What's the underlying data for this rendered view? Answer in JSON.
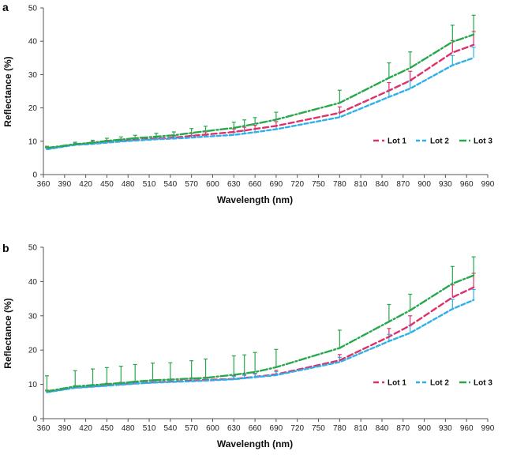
{
  "chart_data": [
    {
      "type": "line",
      "panel_label": "a",
      "xlabel": "Wavelength (nm)",
      "ylabel": "Reflectance (%)",
      "xlim": [
        360,
        990
      ],
      "ylim": [
        0,
        50
      ],
      "x_ticks": [
        360,
        390,
        420,
        450,
        480,
        510,
        540,
        570,
        600,
        630,
        660,
        690,
        720,
        750,
        780,
        810,
        840,
        870,
        900,
        930,
        960,
        990
      ],
      "y_ticks": [
        0,
        10,
        20,
        30,
        40,
        50
      ],
      "grid": false,
      "legend_position": "center-right",
      "x": [
        365,
        405,
        430,
        450,
        470,
        490,
        520,
        545,
        570,
        590,
        630,
        645,
        660,
        690,
        780,
        850,
        880,
        940,
        970
      ],
      "series": [
        {
          "name": "Lot 1",
          "color": "#e0306a",
          "dash": "7,4",
          "values": [
            7.8,
            9.0,
            9.4,
            9.8,
            10.1,
            10.4,
            10.8,
            11.1,
            11.6,
            12.0,
            12.8,
            13.2,
            13.7,
            14.6,
            18.5,
            25.2,
            28.2,
            36.6,
            38.9
          ],
          "err": [
            0.4,
            0.4,
            0.5,
            0.5,
            0.5,
            0.5,
            0.6,
            0.6,
            0.7,
            0.8,
            0.9,
            1.0,
            1.1,
            1.3,
            1.8,
            2.4,
            2.8,
            3.6,
            4.0
          ]
        },
        {
          "name": "Lot 2",
          "color": "#30b0e8",
          "dash": "5,3",
          "values": [
            7.6,
            8.9,
            9.2,
            9.6,
            9.9,
            10.2,
            10.6,
            10.8,
            11.1,
            11.4,
            11.9,
            12.3,
            12.7,
            13.6,
            17.2,
            23.3,
            25.8,
            32.8,
            35.0
          ],
          "err": [
            0.4,
            0.4,
            0.4,
            0.5,
            0.5,
            0.5,
            0.5,
            0.6,
            0.6,
            0.7,
            0.8,
            0.8,
            0.9,
            1.0,
            1.5,
            2.0,
            2.3,
            2.9,
            3.2
          ]
        },
        {
          "name": "Lot 3",
          "color": "#28a84c",
          "dash": "9,3,2,3",
          "values": [
            8.0,
            9.1,
            9.6,
            10.1,
            10.5,
            10.9,
            11.4,
            11.8,
            12.5,
            13.0,
            14.0,
            14.6,
            15.2,
            16.5,
            21.5,
            29.0,
            32.0,
            39.8,
            42.0
          ],
          "err": [
            0.5,
            0.6,
            0.7,
            0.8,
            0.8,
            0.9,
            1.0,
            1.0,
            1.3,
            1.5,
            1.7,
            1.8,
            1.9,
            2.2,
            3.8,
            4.5,
            4.8,
            5.0,
            5.8
          ]
        }
      ]
    },
    {
      "type": "line",
      "panel_label": "b",
      "xlabel": "Wavelength (nm)",
      "ylabel": "Reflectance (%)",
      "xlim": [
        360,
        990
      ],
      "ylim": [
        0,
        50
      ],
      "x_ticks": [
        360,
        390,
        420,
        450,
        480,
        510,
        540,
        570,
        600,
        630,
        660,
        690,
        720,
        750,
        780,
        810,
        840,
        870,
        900,
        930,
        960,
        990
      ],
      "y_ticks": [
        0,
        10,
        20,
        30,
        40,
        50
      ],
      "grid": false,
      "legend_position": "center-right",
      "x": [
        365,
        405,
        430,
        450,
        470,
        490,
        515,
        540,
        570,
        590,
        630,
        645,
        660,
        690,
        780,
        850,
        880,
        940,
        970
      ],
      "series": [
        {
          "name": "Lot 1",
          "color": "#e0306a",
          "dash": "7,4",
          "values": [
            7.8,
            9.1,
            9.4,
            9.7,
            10.0,
            10.3,
            10.6,
            10.8,
            11.1,
            11.3,
            11.6,
            11.9,
            12.2,
            12.9,
            17.0,
            23.9,
            27.2,
            35.4,
            38.3
          ],
          "err": [
            0.5,
            0.5,
            0.5,
            0.6,
            0.6,
            0.6,
            0.7,
            0.7,
            0.8,
            0.8,
            0.9,
            1.0,
            1.0,
            1.2,
            1.7,
            2.4,
            2.8,
            3.6,
            4.1
          ]
        },
        {
          "name": "Lot 2",
          "color": "#30b0e8",
          "dash": "5,3",
          "values": [
            7.7,
            9.0,
            9.3,
            9.6,
            9.9,
            10.2,
            10.5,
            10.7,
            10.9,
            11.1,
            11.5,
            11.8,
            12.1,
            12.7,
            16.5,
            22.6,
            25.0,
            32.0,
            34.6
          ],
          "err": [
            0.4,
            0.4,
            0.5,
            0.5,
            0.5,
            0.5,
            0.6,
            0.6,
            0.6,
            0.7,
            0.8,
            0.8,
            0.9,
            1.0,
            1.4,
            2.0,
            2.2,
            2.8,
            3.1
          ]
        },
        {
          "name": "Lot 3",
          "color": "#28a84c",
          "dash": "9,3,2,3",
          "values": [
            8.0,
            9.4,
            9.8,
            10.1,
            10.4,
            10.8,
            11.2,
            11.4,
            11.7,
            11.9,
            12.8,
            13.2,
            13.6,
            15.0,
            20.6,
            28.3,
            31.6,
            39.4,
            41.8
          ],
          "err": [
            4.5,
            4.6,
            4.7,
            4.8,
            4.9,
            5.0,
            5.0,
            4.9,
            5.2,
            5.5,
            5.5,
            5.4,
            5.7,
            5.2,
            5.2,
            5.0,
            4.7,
            5.0,
            5.4
          ]
        }
      ]
    }
  ]
}
